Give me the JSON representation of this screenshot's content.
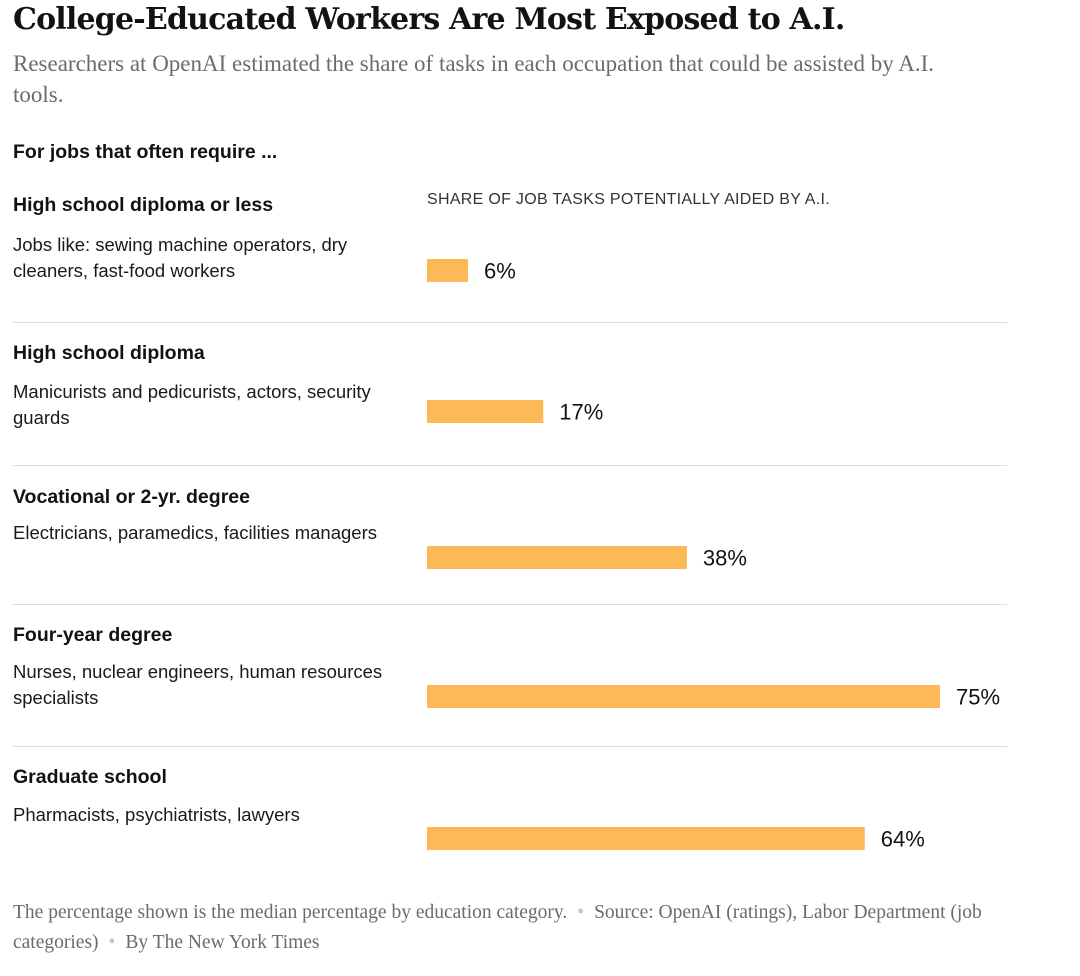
{
  "title": "College-Educated Workers Are Most Exposed to A.I.",
  "subtitle": "Researchers at OpenAI estimated the share of tasks in each occupation that could be assisted by A.I. tools.",
  "intro": "For jobs that often require ...",
  "chart_data": {
    "type": "bar",
    "orientation": "horizontal",
    "title": "College-Educated Workers Are Most Exposed to A.I.",
    "subtitle": "Researchers at OpenAI estimated the share of tasks in each occupation that could be assisted by A.I. tools.",
    "xlabel": "SHARE OF JOB TASKS POTENTIALLY AIDED BY A.I.",
    "ylabel": "",
    "xlim": [
      0,
      75
    ],
    "grid": false,
    "bar_color": "#fbba57",
    "categories": [
      "High school diploma or less",
      "High school diploma",
      "Vocational or 2-yr. degree",
      "Four-year degree",
      "Graduate school"
    ],
    "descriptions": [
      "Jobs like: sewing machine operators, dry cleaners, fast-food workers",
      "Manicurists and pedicurists, actors, security guards",
      "Electricians, paramedics, facilities managers",
      "Nurses, nuclear engineers, human resources specialists",
      "Pharmacists, psychiatrists, lawyers"
    ],
    "values": [
      6,
      17,
      38,
      75,
      64
    ],
    "value_labels": [
      "6%",
      "17%",
      "38%",
      "75%",
      "64%"
    ]
  },
  "footer": {
    "note": "The percentage shown is the median percentage by education category.",
    "source": "Source: OpenAI (ratings), Labor Department (job categories)",
    "credit": "By The New York Times",
    "separator": "•"
  }
}
